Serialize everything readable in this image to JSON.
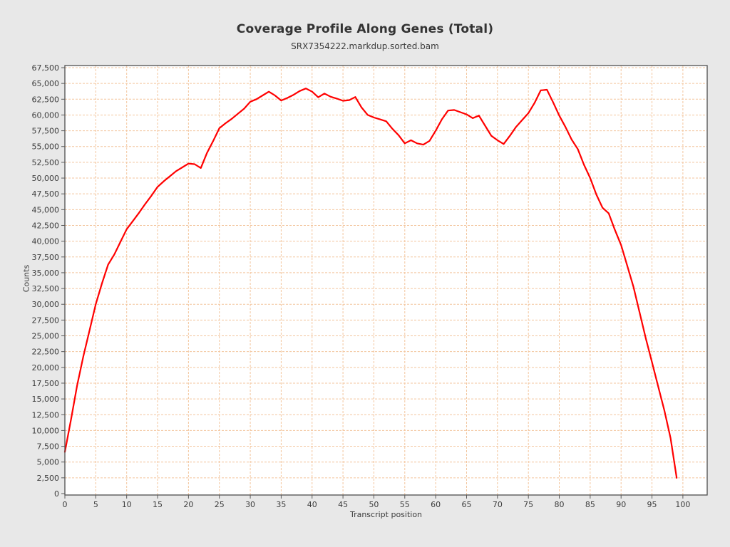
{
  "chart_data": {
    "type": "line",
    "title": "Coverage Profile Along Genes (Total)",
    "subtitle": "SRX7354222.markdup.sorted.bam",
    "xlabel": "Transcript position",
    "ylabel": "Counts",
    "xlim": [
      0,
      104
    ],
    "ylim": [
      0,
      67500
    ],
    "grid": true,
    "legend": false,
    "x_ticks": [
      0,
      5,
      10,
      15,
      20,
      25,
      30,
      35,
      40,
      45,
      50,
      55,
      60,
      65,
      70,
      75,
      80,
      85,
      90,
      95,
      100
    ],
    "x_tick_labels": [
      "0",
      "5",
      "10",
      "15",
      "20",
      "25",
      "30",
      "35",
      "40",
      "45",
      "50",
      "55",
      "60",
      "65",
      "70",
      "75",
      "80",
      "85",
      "90",
      "95",
      "100"
    ],
    "y_ticks": [
      0,
      2500,
      5000,
      7500,
      10000,
      12500,
      15000,
      17500,
      20000,
      22500,
      25000,
      27500,
      30000,
      32500,
      35000,
      37500,
      40000,
      42500,
      45000,
      47500,
      50000,
      52500,
      55000,
      57500,
      60000,
      62500,
      65000,
      67500
    ],
    "y_tick_labels": [
      "0",
      "2,500",
      "5,000",
      "7,500",
      "10,000",
      "12,500",
      "15,000",
      "17,500",
      "20,000",
      "22,500",
      "25,000",
      "27,500",
      "30,000",
      "32,500",
      "35,000",
      "37,500",
      "40,000",
      "42,500",
      "45,000",
      "47,500",
      "50,000",
      "52,500",
      "55,000",
      "57,500",
      "60,000",
      "62,500",
      "65,000",
      "67,500"
    ],
    "series": [
      {
        "name": "SRX7354222.markdup.sorted.bam",
        "x": [
          0,
          1,
          2,
          3,
          4,
          5,
          6,
          7,
          8,
          9,
          10,
          11,
          12,
          13,
          14,
          15,
          16,
          17,
          18,
          19,
          20,
          21,
          22,
          23,
          24,
          25,
          26,
          27,
          28,
          29,
          30,
          31,
          32,
          33,
          34,
          35,
          36,
          37,
          38,
          39,
          40,
          41,
          42,
          43,
          44,
          45,
          46,
          47,
          48,
          49,
          50,
          51,
          52,
          53,
          54,
          55,
          56,
          57,
          58,
          59,
          60,
          61,
          62,
          63,
          64,
          65,
          66,
          67,
          68,
          69,
          70,
          71,
          72,
          73,
          74,
          75,
          76,
          77,
          78,
          79,
          80,
          81,
          82,
          83,
          84,
          85,
          86,
          87,
          88,
          89,
          90,
          91,
          92,
          93,
          94,
          95,
          96,
          97,
          98,
          99
        ],
        "values": [
          6600,
          11800,
          17200,
          21800,
          25900,
          30000,
          33300,
          36300,
          37900,
          39900,
          41900,
          43200,
          44500,
          45900,
          47200,
          48600,
          49500,
          50300,
          51100,
          51700,
          52300,
          52200,
          51600,
          54000,
          55900,
          57900,
          58700,
          59400,
          60200,
          61000,
          62100,
          62500,
          63100,
          63700,
          63100,
          62300,
          62700,
          63200,
          63800,
          64200,
          63700,
          62800,
          63400,
          62900,
          62600,
          62250,
          62350,
          62850,
          61200,
          60000,
          59600,
          59300,
          59000,
          57800,
          56800,
          55500,
          56000,
          55500,
          55300,
          55900,
          57500,
          59300,
          60700,
          60800,
          60450,
          60100,
          59500,
          59900,
          58300,
          56700,
          56000,
          55400,
          56700,
          58100,
          59200,
          60300,
          61900,
          63900,
          64000,
          62000,
          59900,
          58100,
          56100,
          54600,
          52100,
          50000,
          47400,
          45300,
          44400,
          41800,
          39400,
          36100,
          32800,
          28700,
          24600,
          20800,
          17000,
          13200,
          8800,
          2500
        ]
      }
    ],
    "colors": {
      "line": "#ff0000",
      "grid": "#f3c59d",
      "plot_bg": "#ffffff",
      "page_bg": "#e8e8e8",
      "frame": "#4e4e4e",
      "tick": "#5a5a5a",
      "text": "#3c3c3c",
      "title": "#333333"
    }
  }
}
